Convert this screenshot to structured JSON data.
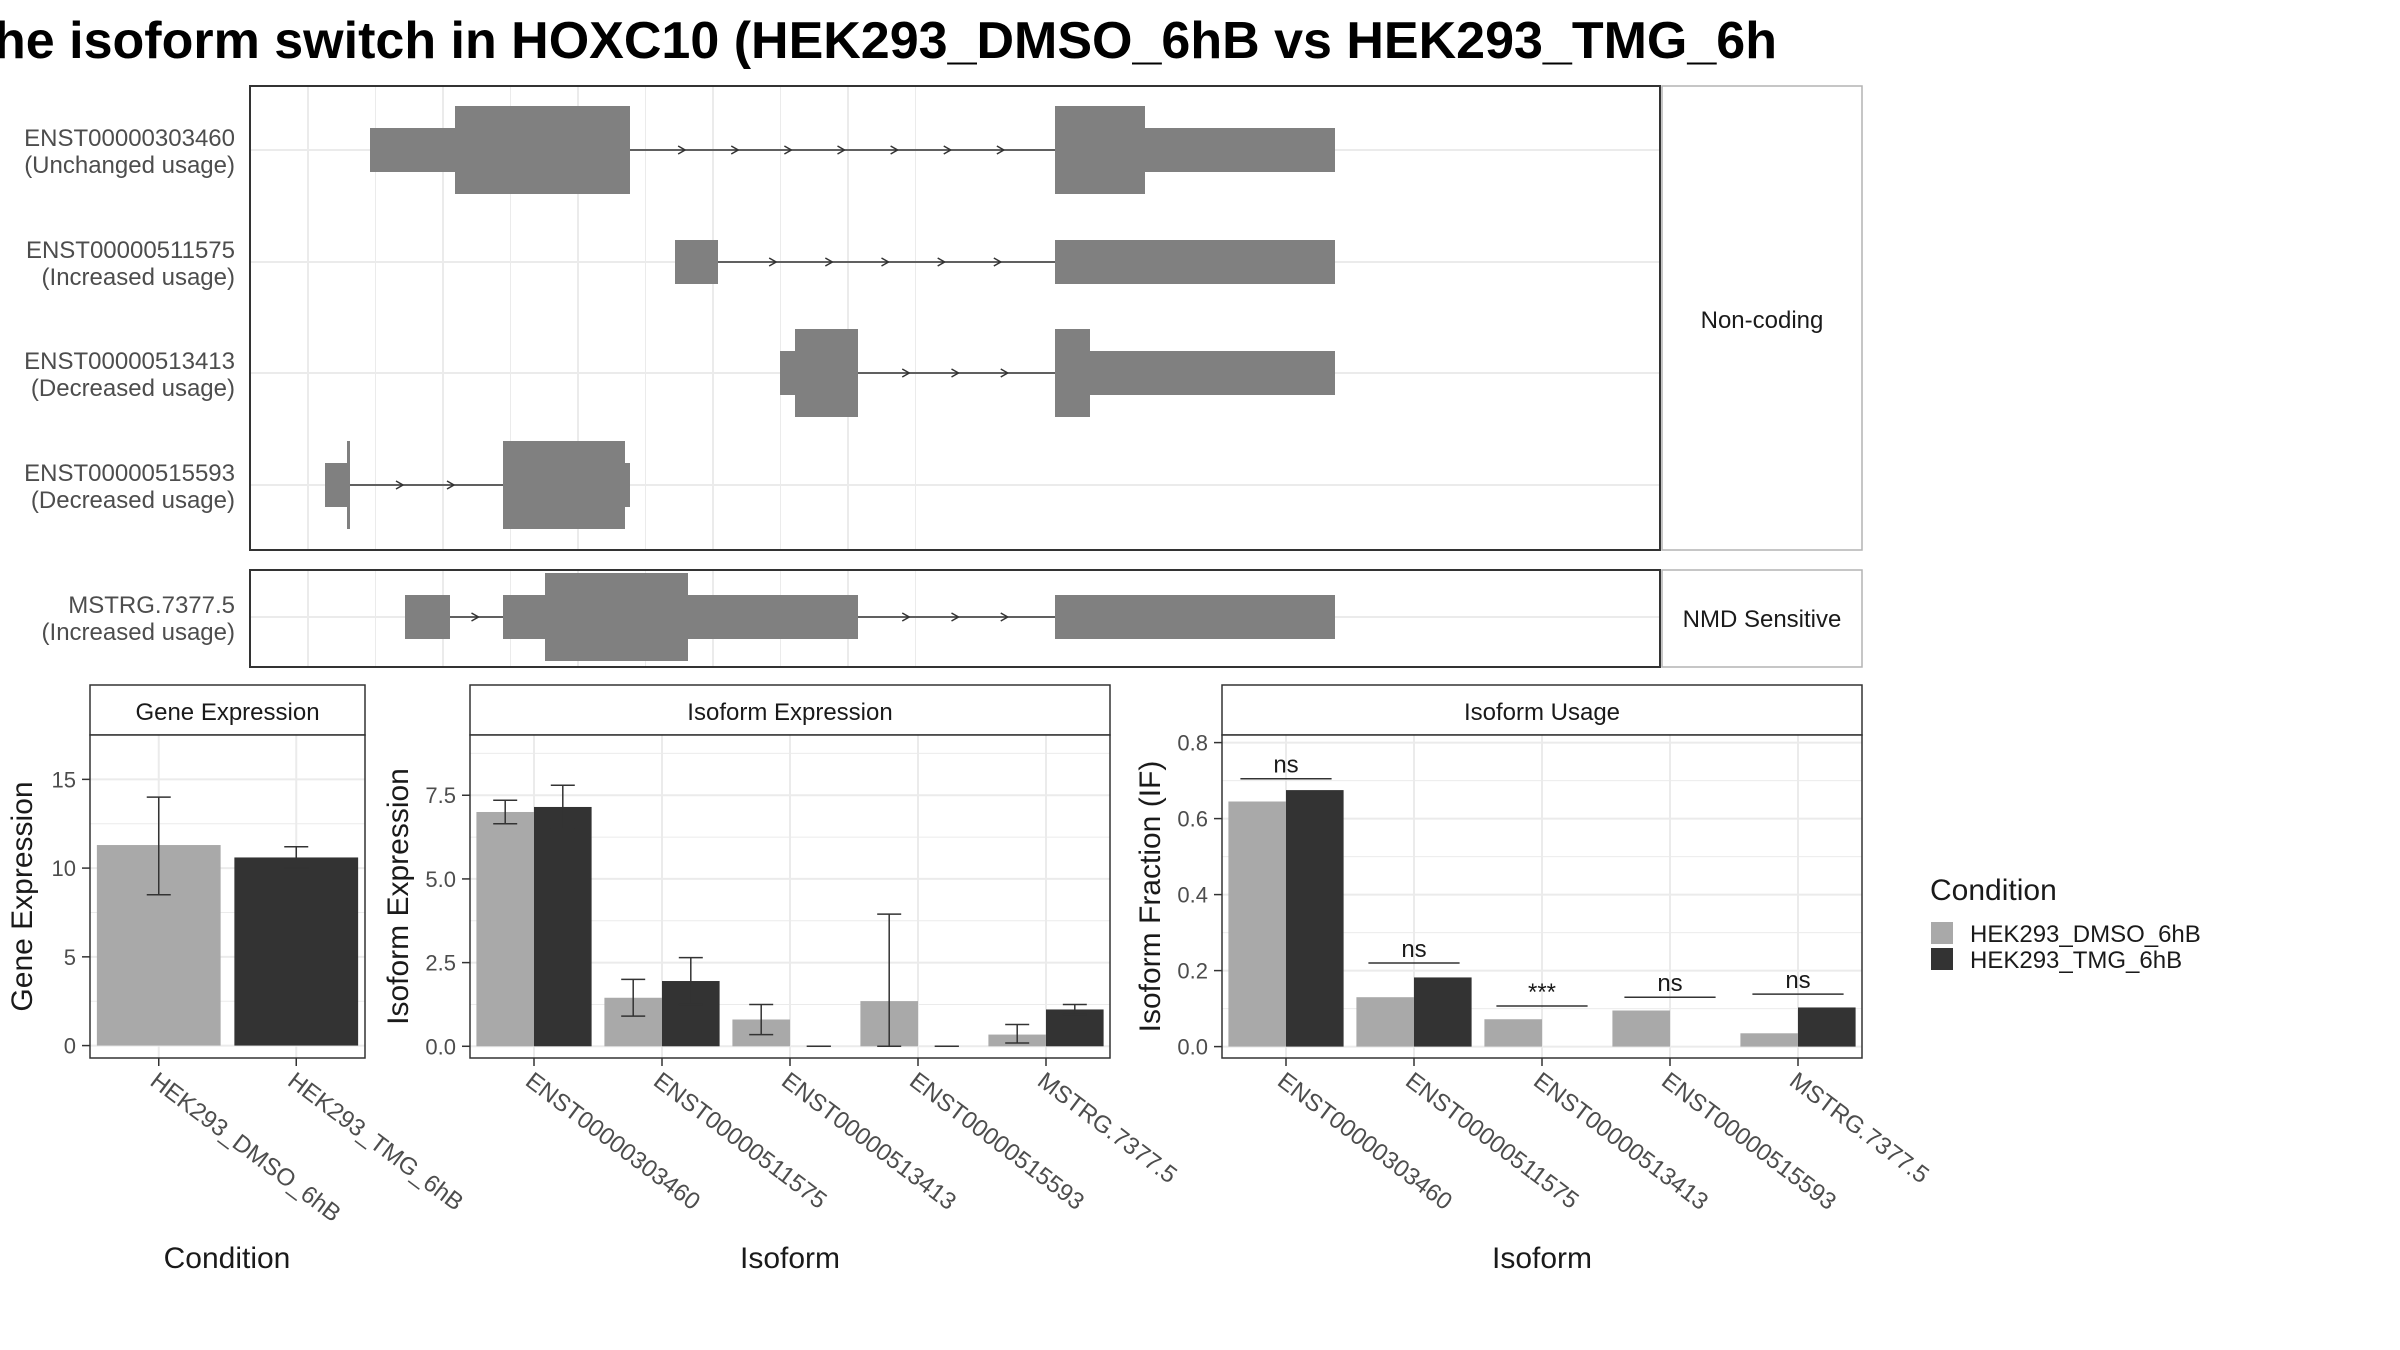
{
  "title": "he isoform switch in HOXC10 (HEK293_DMSO_6hB vs HEK293_TMG_6h",
  "colors": {
    "dmso": "#a9a9a9",
    "tmg": "#333333",
    "structure": "#808080",
    "grid": "#ebebeb",
    "panel_border": "#333333",
    "strip_border": "#b3b3b3",
    "axis_text": "#4d4d4d"
  },
  "legend": {
    "title": "Condition",
    "entries": [
      "HEK293_DMSO_6hB",
      "HEK293_TMG_6hB"
    ],
    "placement": "right"
  },
  "structure_groups": [
    {
      "label": "Non-coding",
      "transcripts": [
        0,
        1,
        2,
        3
      ]
    },
    {
      "label": "NMD Sensitive",
      "transcripts": [
        4
      ]
    }
  ],
  "transcripts": [
    {
      "id": "ENST00000303460",
      "usage": "(Unchanged usage)",
      "span": [
        120,
        1085
      ],
      "blocks": [
        [
          120,
          205,
          "utr"
        ],
        [
          205,
          380,
          "cds"
        ],
        [
          805,
          895,
          "cds"
        ],
        [
          895,
          1085,
          "utr"
        ]
      ]
    },
    {
      "id": "ENST00000511575",
      "usage": "(Increased usage)",
      "span": [
        425,
        1085
      ],
      "blocks": [
        [
          425,
          468,
          "utr"
        ],
        [
          805,
          1085,
          "utr"
        ]
      ]
    },
    {
      "id": "ENST00000513413",
      "usage": "(Decreased usage)",
      "span": [
        530,
        1085
      ],
      "blocks": [
        [
          530,
          545,
          "utr"
        ],
        [
          545,
          608,
          "cds"
        ],
        [
          805,
          840,
          "cds"
        ],
        [
          840,
          1085,
          "utr"
        ]
      ]
    },
    {
      "id": "ENST00000515593",
      "usage": "(Decreased usage)",
      "span": [
        75,
        380
      ],
      "blocks": [
        [
          75,
          97,
          "utr"
        ],
        [
          97,
          100,
          "cds"
        ],
        [
          253,
          375,
          "cds"
        ],
        [
          375,
          380,
          "utr"
        ]
      ]
    },
    {
      "id": "MSTRG.7377.5",
      "usage": "(Increased usage)",
      "span": [
        155,
        1085
      ],
      "blocks": [
        [
          155,
          200,
          "utr"
        ],
        [
          253,
          295,
          "utr"
        ],
        [
          295,
          438,
          "cds"
        ],
        [
          438,
          608,
          "utr"
        ],
        [
          805,
          1085,
          "utr"
        ]
      ]
    }
  ],
  "chart_data": [
    {
      "type": "bar",
      "title": "Gene Expression",
      "xlabel": "Condition",
      "ylabel": "Gene Expression",
      "categories": [
        "HEK293_DMSO_6hB",
        "HEK293_TMG_6hB"
      ],
      "values": [
        11.3,
        10.6
      ],
      "error": [
        [
          8.5,
          14.0
        ],
        [
          10.0,
          11.2
        ]
      ],
      "ylim": [
        -0.7,
        17.5
      ],
      "yticks": [
        0,
        5,
        10,
        15
      ],
      "grid": true
    },
    {
      "type": "bar",
      "title": "Isoform Expression",
      "xlabel": "Isoform",
      "ylabel": "Isoform Expression",
      "categories": [
        "ENST00000303460",
        "ENST00000511575",
        "ENST00000513413",
        "ENST00000515593",
        "MSTRG.7377.5"
      ],
      "series": [
        {
          "name": "HEK293_DMSO_6hB",
          "values": [
            7.0,
            1.45,
            0.8,
            1.35,
            0.35
          ],
          "error": [
            [
              6.65,
              7.35
            ],
            [
              0.9,
              2.0
            ],
            [
              0.35,
              1.25
            ],
            [
              0.0,
              3.95
            ],
            [
              0.1,
              0.65
            ]
          ]
        },
        {
          "name": "HEK293_TMG_6hB",
          "values": [
            7.15,
            1.95,
            0.0,
            0.0,
            1.1
          ],
          "error": [
            [
              6.5,
              7.8
            ],
            [
              1.25,
              2.65
            ],
            [
              0,
              0
            ],
            [
              0,
              0
            ],
            [
              0.95,
              1.25
            ]
          ]
        }
      ],
      "ylim": [
        -0.35,
        9.3
      ],
      "yticks": [
        0.0,
        2.5,
        5.0,
        7.5
      ],
      "grid": true
    },
    {
      "type": "bar",
      "title": "Isoform Usage",
      "xlabel": "Isoform",
      "ylabel": "Isoform Fraction (IF)",
      "categories": [
        "ENST00000303460",
        "ENST00000511575",
        "ENST00000513413",
        "ENST00000515593",
        "MSTRG.7377.5"
      ],
      "series": [
        {
          "name": "HEK293_DMSO_6hB",
          "values": [
            0.645,
            0.13,
            0.072,
            0.095,
            0.035
          ]
        },
        {
          "name": "HEK293_TMG_6hB",
          "values": [
            0.675,
            0.182,
            0.0,
            0.0,
            0.103
          ]
        }
      ],
      "significance": [
        {
          "label": "ns",
          "y": 0.705
        },
        {
          "label": "ns",
          "y": 0.22
        },
        {
          "label": "***",
          "y": 0.107
        },
        {
          "label": "ns",
          "y": 0.13
        },
        {
          "label": "ns",
          "y": 0.138
        }
      ],
      "ylim": [
        -0.03,
        0.82
      ],
      "yticks": [
        0.0,
        0.2,
        0.4,
        0.6,
        0.8
      ],
      "grid": true
    }
  ]
}
